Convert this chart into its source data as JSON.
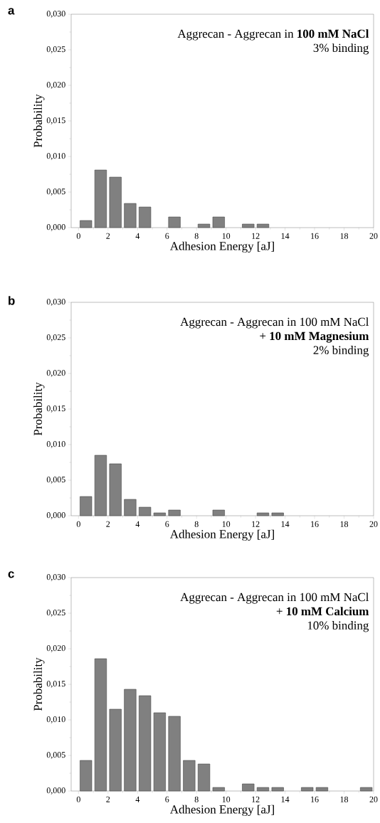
{
  "chart_data": [
    {
      "type": "histogram",
      "title": "a",
      "xlabel": "Adhesion Energy [aJ]",
      "ylabel": "Probability",
      "color": "#808080",
      "bins": [
        0,
        1,
        2,
        3,
        4,
        5,
        6,
        7,
        8,
        9,
        10,
        11,
        12,
        13,
        14,
        15,
        16,
        17,
        18,
        19,
        20
      ],
      "values": [
        0.001,
        0.0081,
        0.0071,
        0.0034,
        0.0029,
        0,
        0.0015,
        0,
        0.0005,
        0.0015,
        0,
        0.0005,
        0.0005,
        0,
        0,
        0,
        0,
        0,
        0,
        0
      ],
      "xlim": [
        -0.5,
        20
      ],
      "ylim": [
        0,
        0.03
      ],
      "xticks": [
        0,
        2,
        4,
        6,
        8,
        10,
        12,
        14,
        16,
        18,
        20
      ],
      "yticks": [
        {
          "value": 0,
          "label": "0,000"
        },
        {
          "value": 0.005,
          "label": "0,005"
        },
        {
          "value": 0.01,
          "label": "0,010"
        },
        {
          "value": 0.015,
          "label": "0,015"
        },
        {
          "value": 0.02,
          "label": "0,020"
        },
        {
          "value": 0.025,
          "label": "0,025"
        },
        {
          "value": 0.03,
          "label": "0,030"
        }
      ],
      "annotations": [
        "Aggrecan - Aggrecan in **100 mM NaCl**",
        "3% binding"
      ]
    },
    {
      "type": "histogram",
      "title": "b",
      "xlabel": "Adhesion Energy [aJ]",
      "ylabel": "Probability",
      "color": "#808080",
      "bins": [
        0,
        1,
        2,
        3,
        4,
        5,
        6,
        7,
        8,
        9,
        10,
        11,
        12,
        13,
        14,
        15,
        16,
        17,
        18,
        19,
        20
      ],
      "values": [
        0.0027,
        0.0085,
        0.0073,
        0.0023,
        0.0012,
        0.0004,
        0.0008,
        0,
        0,
        0.0008,
        0,
        0,
        0.0004,
        0.0004,
        0,
        0,
        0,
        0,
        0,
        0
      ],
      "xlim": [
        -0.5,
        20
      ],
      "ylim": [
        0,
        0.03
      ],
      "xticks": [
        0,
        2,
        4,
        6,
        8,
        10,
        12,
        14,
        16,
        18,
        20
      ],
      "yticks": [
        {
          "value": 0,
          "label": "0,000"
        },
        {
          "value": 0.005,
          "label": "0,005"
        },
        {
          "value": 0.01,
          "label": "0,010"
        },
        {
          "value": 0.015,
          "label": "0,015"
        },
        {
          "value": 0.02,
          "label": "0,020"
        },
        {
          "value": 0.025,
          "label": "0,025"
        },
        {
          "value": 0.03,
          "label": "0,030"
        }
      ],
      "annotations": [
        "Aggrecan - Aggrecan in 100 mM NaCl",
        "+ **10 mM Magnesium**",
        "2% binding"
      ]
    },
    {
      "type": "histogram",
      "title": "c",
      "xlabel": "Adhesion Energy [aJ]",
      "ylabel": "Probability",
      "color": "#808080",
      "bins": [
        0,
        1,
        2,
        3,
        4,
        5,
        6,
        7,
        8,
        9,
        10,
        11,
        12,
        13,
        14,
        15,
        16,
        17,
        18,
        19,
        20
      ],
      "values": [
        0.0043,
        0.0186,
        0.0115,
        0.0143,
        0.0134,
        0.011,
        0.0105,
        0.0043,
        0.0038,
        0.0005,
        0,
        0.001,
        0.0005,
        0.0005,
        0,
        0.0005,
        0.0005,
        0,
        0,
        0.0005
      ],
      "xlim": [
        -0.5,
        20
      ],
      "ylim": [
        0,
        0.03
      ],
      "xticks": [
        0,
        2,
        4,
        6,
        8,
        10,
        12,
        14,
        16,
        18,
        20
      ],
      "yticks": [
        {
          "value": 0,
          "label": "0,000"
        },
        {
          "value": 0.005,
          "label": "0,005"
        },
        {
          "value": 0.01,
          "label": "0,010"
        },
        {
          "value": 0.015,
          "label": "0,015"
        },
        {
          "value": 0.02,
          "label": "0,020"
        },
        {
          "value": 0.025,
          "label": "0,025"
        },
        {
          "value": 0.03,
          "label": "0,030"
        }
      ],
      "annotations": [
        "Aggrecan - Aggrecan in 100 mM NaCl",
        "+ **10 mM Calcium**",
        "10% binding"
      ]
    }
  ]
}
